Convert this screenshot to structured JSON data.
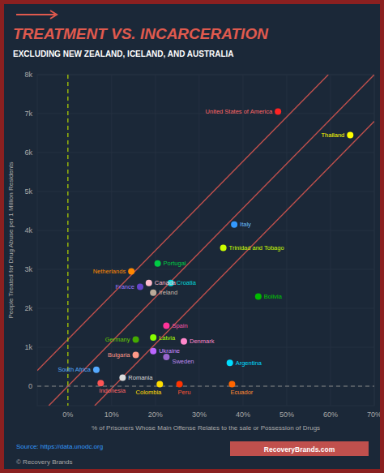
{
  "chart_data": {
    "type": "scatter",
    "title": "TREATMENT VS. INCARCERATION",
    "subtitle": "EXCLUDING NEW ZEALAND, ICELAND, AND AUSTRALIA",
    "xlabel": "% of Prisoners Whose Main Offense Relates to the sale or Possession of Drugs",
    "ylabel": "People Treated for Drug Abuse per 1 Million Residents",
    "source": "Source: https://data.unodc.org",
    "brand": "RecoveryBrands.com",
    "copyright": "© Recovery Brands",
    "background": "#1b2838",
    "title_color": "#e05a4e",
    "subtitle_color": "#ffffff",
    "grid_color": "#253040",
    "axis_label_color": "#aaaaaa",
    "tick_color": "#aaaaaa",
    "source_color": "#3399ff",
    "brand_color": "#c0504d",
    "border_color": "#8b2020",
    "grid": true,
    "xlim": [
      -0.07,
      0.7
    ],
    "ylim": [
      -500,
      8000
    ],
    "xticks": [
      {
        "value": 0,
        "label": "0%"
      },
      {
        "value": 0.1,
        "label": "10%"
      },
      {
        "value": 0.2,
        "label": "20%"
      },
      {
        "value": 0.3,
        "label": "30%"
      },
      {
        "value": 0.4,
        "label": "40%"
      },
      {
        "value": 0.5,
        "label": "50%"
      },
      {
        "value": 0.6,
        "label": "60%"
      },
      {
        "value": 0.7,
        "label": "70%"
      }
    ],
    "yticks": [
      0,
      {
        "value": 1000,
        "label": "1k"
      },
      {
        "value": 2000,
        "label": "2k"
      },
      {
        "value": 3000,
        "label": "3k"
      },
      {
        "value": 4000,
        "label": "4k"
      },
      {
        "value": 5000,
        "label": "5k"
      },
      {
        "value": 6000,
        "label": "6k"
      },
      {
        "value": 7000,
        "label": "7k"
      },
      {
        "value": 8000,
        "label": "8k"
      }
    ],
    "reference_lines": [
      {
        "x": [
          -0.07,
          0.595
        ],
        "y": [
          400,
          8000
        ],
        "color": "#c0504d"
      },
      {
        "x": [
          -0.04375,
          0.7
        ],
        "y": [
          -500,
          8000
        ],
        "color": "#c0504d"
      },
      {
        "x": [
          0.06125,
          0.7
        ],
        "y": [
          -500,
          6800
        ],
        "color": "#c0504d"
      }
    ],
    "vlines": [
      {
        "x": 0.0,
        "color": "#aacc00",
        "line_style": "dashed"
      }
    ],
    "hlines": [
      {
        "y": 0,
        "color": "#888888",
        "line_style": "dashed"
      }
    ],
    "points": [
      {
        "label": "United States of America",
        "x": 0.48,
        "y": 7050,
        "color": "#ff2222",
        "label_color": "#ff6666"
      },
      {
        "label": "Thailand",
        "x": 0.645,
        "y": 6450,
        "color": "#ffff00",
        "label_color": "#ffff00"
      },
      {
        "label": "Italy",
        "x": 0.38,
        "y": 4150,
        "color": "#3399ff",
        "label_color": "#66bbff"
      },
      {
        "label": "Trinidad and Tobago",
        "x": 0.355,
        "y": 3550,
        "color": "#ccff00",
        "label_color": "#ccff00"
      },
      {
        "label": "Portugal",
        "x": 0.205,
        "y": 3150,
        "color": "#00cc44",
        "label_color": "#00cc44"
      },
      {
        "label": "Netherlands",
        "x": 0.145,
        "y": 2950,
        "color": "#ff8800",
        "label_color": "#ff8800"
      },
      {
        "label": "Canada",
        "x": 0.185,
        "y": 2650,
        "color": "#ffbbcc",
        "label_color": "#ffbbcc"
      },
      {
        "label": "Croatia",
        "x": 0.235,
        "y": 2650,
        "color": "#00dddd",
        "label_color": "#00dddd"
      },
      {
        "label": "France",
        "x": 0.165,
        "y": 2550,
        "color": "#6644cc",
        "label_color": "#9977ff"
      },
      {
        "label": "Ireland",
        "x": 0.195,
        "y": 2400,
        "color": "#bbaa99",
        "label_color": "#ccbbaa"
      },
      {
        "label": "Bolivia",
        "x": 0.435,
        "y": 2300,
        "color": "#00bb00",
        "label_color": "#00cc00"
      },
      {
        "label": "Spain",
        "x": 0.225,
        "y": 1550,
        "color": "#ff3399",
        "label_color": "#ff55aa"
      },
      {
        "label": "Germany",
        "x": 0.155,
        "y": 1200,
        "color": "#44aa00",
        "label_color": "#66cc00"
      },
      {
        "label": "Latvia",
        "x": 0.195,
        "y": 1250,
        "color": "#88ff00",
        "label_color": "#aaff00"
      },
      {
        "label": "Denmark",
        "x": 0.265,
        "y": 1150,
        "color": "#ff88cc",
        "label_color": "#ff88cc"
      },
      {
        "label": "Ukraine",
        "x": 0.195,
        "y": 900,
        "color": "#bb66ff",
        "label_color": "#cc88ff"
      },
      {
        "label": "Bulgaria",
        "x": 0.155,
        "y": 800,
        "color": "#ff9988",
        "label_color": "#ff9988"
      },
      {
        "label": "Sweden",
        "x": 0.225,
        "y": 750,
        "color": "#9966cc",
        "label_color": "#bb88ee"
      },
      {
        "label": "Argentina",
        "x": 0.37,
        "y": 600,
        "color": "#00ddff",
        "label_color": "#00ddff"
      },
      {
        "label": "South Africa",
        "x": 0.065,
        "y": 420,
        "color": "#55aaff",
        "label_color": "#55aaff"
      },
      {
        "label": "Romania",
        "x": 0.125,
        "y": 220,
        "color": "#dddddd",
        "label_color": "#dddddd"
      },
      {
        "label": "Indonesia",
        "x": 0.075,
        "y": 80,
        "color": "#ff5555",
        "label_color": "#ff6666"
      },
      {
        "label": "Colombia",
        "x": 0.21,
        "y": 50,
        "color": "#ffdd00",
        "label_color": "#ffdd00"
      },
      {
        "label": "Peru",
        "x": 0.255,
        "y": 50,
        "color": "#ff3300",
        "label_color": "#ff5533"
      },
      {
        "label": "Ecuador",
        "x": 0.375,
        "y": 50,
        "color": "#ff6600",
        "label_color": "#ff8833"
      }
    ]
  }
}
